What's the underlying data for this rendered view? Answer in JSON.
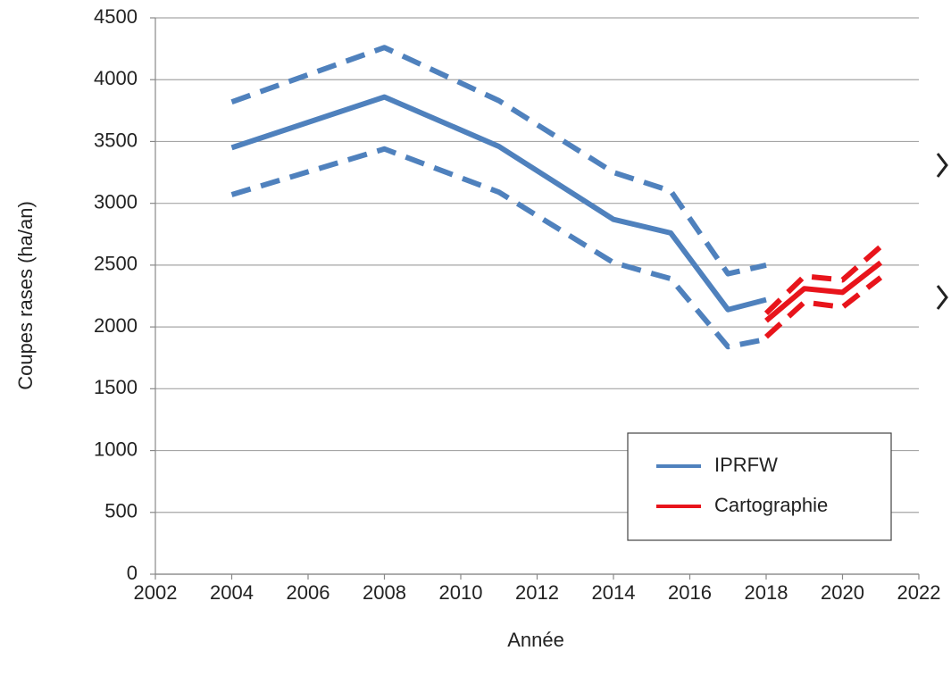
{
  "chart_data": {
    "type": "line",
    "xlabel": "Année",
    "ylabel": "Coupes rases (ha/an)",
    "xlim": [
      2002,
      2022
    ],
    "xticks": [
      2002,
      2004,
      2006,
      2008,
      2010,
      2012,
      2014,
      2016,
      2018,
      2020,
      2022
    ],
    "ylim": [
      0,
      4500
    ],
    "yticks": [
      0,
      500,
      1000,
      1500,
      2000,
      2500,
      3000,
      3500,
      4000,
      4500
    ],
    "grid": true,
    "legend": "lower right",
    "series": [
      {
        "name": "IPRFW",
        "color": "#4f81bd",
        "x": [
          2004,
          2008,
          2011,
          2014,
          2015.5,
          2017,
          2018
        ],
        "values": [
          3450,
          3860,
          3460,
          2870,
          2760,
          2140,
          2220
        ],
        "upper": [
          3820,
          4260,
          3830,
          3250,
          3100,
          2430,
          2500
        ],
        "lower": [
          3070,
          3440,
          3090,
          2520,
          2390,
          1840,
          1900
        ]
      },
      {
        "name": "Cartographie",
        "color": "#e8141b",
        "x": [
          2018,
          2019,
          2020,
          2021
        ],
        "values": [
          2050,
          2310,
          2280,
          2520
        ],
        "upper": [
          2110,
          2410,
          2380,
          2650
        ],
        "lower": [
          1920,
          2200,
          2160,
          2400
        ]
      }
    ]
  }
}
